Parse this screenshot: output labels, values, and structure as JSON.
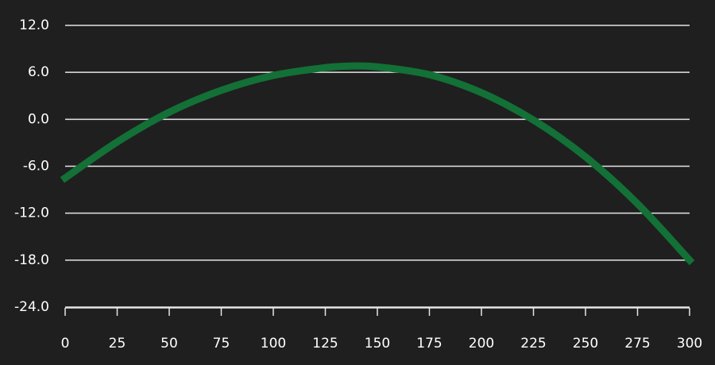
{
  "chart_data": {
    "type": "line",
    "title": "",
    "xlabel": "",
    "ylabel": "",
    "xlim": [
      0,
      300
    ],
    "ylim": [
      -24,
      12
    ],
    "x_ticks": [
      "0",
      "25",
      "50",
      "75",
      "100",
      "125",
      "150",
      "175",
      "200",
      "225",
      "250",
      "275",
      "300"
    ],
    "y_ticks": [
      "12.0",
      "6.0",
      "0.0",
      "-6.0",
      "-12.0",
      "-18.0",
      "-24.0"
    ],
    "grid": "horizontal",
    "legend": "none",
    "series": [
      {
        "color": "#137036",
        "x": [
          0,
          25,
          50,
          75,
          100,
          125,
          137,
          150,
          175,
          200,
          225,
          250,
          275,
          300
        ],
        "y": [
          -7.5,
          -2.9,
          0.9,
          3.7,
          5.6,
          6.6,
          6.8,
          6.7,
          5.7,
          3.4,
          -0.1,
          -4.8,
          -10.8,
          -18.0
        ]
      }
    ]
  }
}
